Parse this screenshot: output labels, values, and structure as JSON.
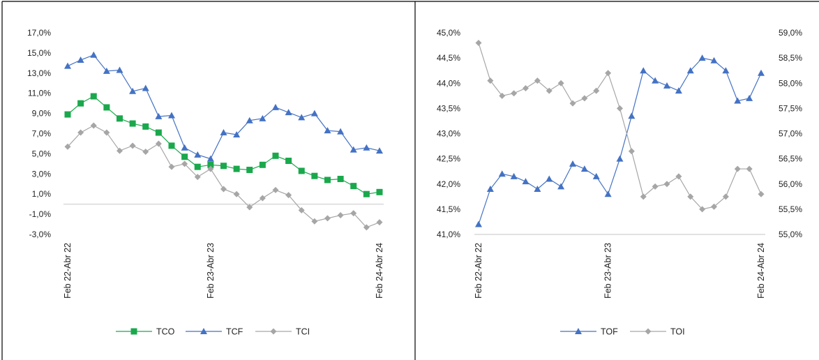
{
  "chart_data": [
    {
      "type": "line",
      "categories": [
        "Feb 22-Abr 22",
        "",
        "",
        "",
        "",
        "",
        "",
        "",
        "",
        "",
        "",
        "Feb 23-Abr 23",
        "",
        "",
        "",
        "",
        "",
        "",
        "",
        "",
        "",
        "",
        "",
        "",
        "Feb 24-Abr 24"
      ],
      "x_tick_labels": [
        "Feb 22-Abr 22",
        "Feb 23-Abr 23",
        "Feb 24-Abr 24"
      ],
      "x_tick_index": [
        0,
        11,
        24
      ],
      "ylim": [
        -3.0,
        17.0
      ],
      "y_ticks": [
        -3.0,
        -1.0,
        1.0,
        3.0,
        5.0,
        7.0,
        9.0,
        11.0,
        13.0,
        15.0,
        17.0
      ],
      "y_tick_labels": [
        "-3,0%",
        "-1,0%",
        "1,0%",
        "3,0%",
        "5,0%",
        "7,0%",
        "9,0%",
        "11,0%",
        "13,0%",
        "15,0%",
        "17,0%"
      ],
      "zero_line": 0.0,
      "legend_position": "bottom",
      "series": [
        {
          "name": "TCO",
          "marker": "square",
          "color": "#1aa84c",
          "values": [
            8.9,
            10.0,
            10.7,
            9.6,
            8.5,
            8.0,
            7.7,
            7.1,
            5.8,
            4.7,
            3.7,
            3.9,
            3.8,
            3.5,
            3.4,
            3.9,
            4.8,
            4.3,
            3.3,
            2.8,
            2.4,
            2.5,
            1.8,
            1.0,
            1.2
          ]
        },
        {
          "name": "TCF",
          "marker": "triangle",
          "color": "#4472c4",
          "values": [
            13.7,
            14.3,
            14.8,
            13.2,
            13.3,
            11.2,
            11.5,
            8.7,
            8.8,
            5.6,
            4.9,
            4.5,
            7.1,
            6.9,
            8.3,
            8.5,
            9.6,
            9.1,
            8.6,
            9.0,
            7.3,
            7.2,
            5.4,
            5.6,
            5.3
          ]
        },
        {
          "name": "TCI",
          "marker": "diamond",
          "color": "#a6a6a6",
          "values": [
            5.7,
            7.1,
            7.8,
            7.1,
            5.3,
            5.8,
            5.2,
            6.0,
            3.7,
            4.0,
            2.7,
            3.5,
            1.5,
            1.0,
            -0.3,
            0.6,
            1.4,
            0.9,
            -0.6,
            -1.7,
            -1.4,
            -1.1,
            -0.9,
            -2.3,
            -1.8
          ]
        }
      ]
    },
    {
      "type": "line",
      "categories": [
        "Feb 22-Abr 22",
        "",
        "",
        "",
        "",
        "",
        "",
        "",
        "",
        "",
        "",
        "Feb 23-Abr 23",
        "",
        "",
        "",
        "",
        "",
        "",
        "",
        "",
        "",
        "",
        "",
        "",
        "Feb 24-Abr 24"
      ],
      "x_tick_labels": [
        "Feb 22-Abr 22",
        "Feb 23-Abr 23",
        "Feb 24-Abr 24"
      ],
      "x_tick_index": [
        0,
        11,
        24
      ],
      "ylim": [
        41.0,
        45.0
      ],
      "y_ticks": [
        41.0,
        41.5,
        42.0,
        42.5,
        43.0,
        43.5,
        44.0,
        44.5,
        45.0
      ],
      "y_tick_labels": [
        "41,0%",
        "41,5%",
        "42,0%",
        "42,5%",
        "43,0%",
        "43,5%",
        "44,0%",
        "44,5%",
        "45,0%"
      ],
      "y2lim": [
        55.0,
        59.0
      ],
      "y2_ticks": [
        55.0,
        55.5,
        56.0,
        56.5,
        57.0,
        57.5,
        58.0,
        58.5,
        59.0
      ],
      "y2_tick_labels": [
        "55,0%",
        "55,5%",
        "56,0%",
        "56,5%",
        "57,0%",
        "57,5%",
        "58,0%",
        "58,5%",
        "59,0%"
      ],
      "legend_position": "bottom",
      "series": [
        {
          "name": "TOF",
          "marker": "triangle",
          "color": "#4472c4",
          "axis": "left",
          "values": [
            41.2,
            41.9,
            42.2,
            42.15,
            42.05,
            41.9,
            42.1,
            41.95,
            42.4,
            42.3,
            42.15,
            41.8,
            42.5,
            43.35,
            44.25,
            44.05,
            43.95,
            43.85,
            44.25,
            44.5,
            44.45,
            44.25,
            43.65,
            43.7,
            44.2
          ]
        },
        {
          "name": "TOI",
          "marker": "diamond",
          "color": "#a6a6a6",
          "axis": "right",
          "values": [
            58.8,
            58.05,
            57.75,
            57.8,
            57.9,
            58.05,
            57.85,
            58.0,
            57.6,
            57.7,
            57.85,
            58.2,
            57.5,
            56.65,
            55.75,
            55.95,
            56.0,
            56.15,
            55.75,
            55.5,
            55.55,
            55.75,
            56.3,
            56.3,
            55.8
          ]
        }
      ]
    }
  ]
}
